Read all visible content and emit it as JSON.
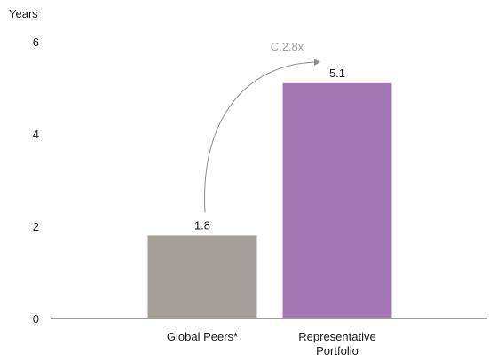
{
  "chart_data": {
    "type": "bar",
    "y_unit": "Years",
    "categories": [
      "Global Peers*",
      "Representative Portfolio"
    ],
    "category_lines": [
      [
        "Global Peers*"
      ],
      [
        "Representative",
        "Portfolio"
      ]
    ],
    "values": [
      1.8,
      5.1
    ],
    "value_labels": [
      "1.8",
      "5.1"
    ],
    "bar_colors": [
      "#a39e98",
      "#a578b5"
    ],
    "ylim": [
      0,
      6
    ],
    "y_ticks": [
      0,
      2,
      4,
      6
    ],
    "y_tick_labels": [
      "0",
      "2",
      "4",
      "6"
    ],
    "grid": false,
    "annotation": {
      "text": "C.2.8x",
      "from_category": 0,
      "to_category": 1,
      "color": "#8c8c8c"
    }
  }
}
